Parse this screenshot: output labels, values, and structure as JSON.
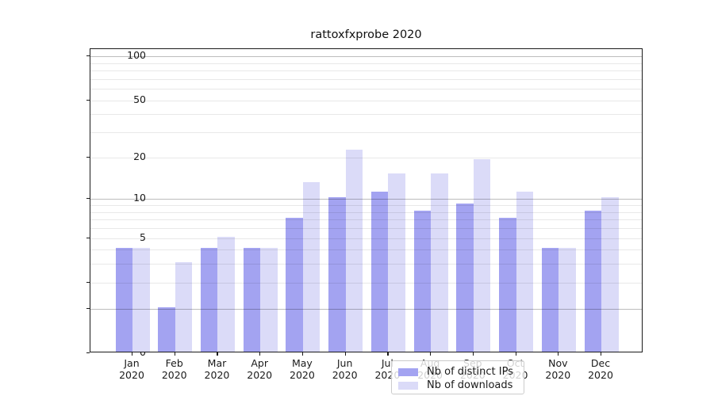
{
  "chart_data": {
    "type": "bar",
    "title": "rattoxfxprobe 2020",
    "scale": "log1p (symlog-like: linear 0-1, logarithmic above)",
    "categories": [
      "Jan",
      "Feb",
      "Mar",
      "Apr",
      "May",
      "Jun",
      "Jul",
      "Aug",
      "Sep",
      "Oct",
      "Nov",
      "Dec"
    ],
    "category_year": "2020",
    "series": [
      {
        "name": "Nb of distinct IPs",
        "color": "#a3a3f1",
        "values": [
          4,
          1,
          4,
          4,
          7,
          10,
          11,
          8,
          9,
          7,
          4,
          8
        ]
      },
      {
        "name": "Nb of downloads",
        "color": "#dbdbf8",
        "values": [
          4,
          3,
          5,
          4,
          13,
          22,
          15,
          15,
          19,
          11,
          4,
          10
        ]
      }
    ],
    "xlabel": "",
    "ylabel": "",
    "ylim": [
      0,
      112
    ],
    "y_ticks": [
      0,
      1,
      2,
      5,
      10,
      20,
      50,
      100
    ],
    "grid": "horizontal on; major decades darker, minor log subdivisions lighter; grid drawn above bars",
    "legend_position": "lower center inside plot",
    "colors": {
      "major_grid": "rgba(0,0,0,0.26)",
      "minor_grid": "rgba(0,0,0,0.09)",
      "axes_frame": "#1a1a1a",
      "background": "#ffffff"
    }
  }
}
